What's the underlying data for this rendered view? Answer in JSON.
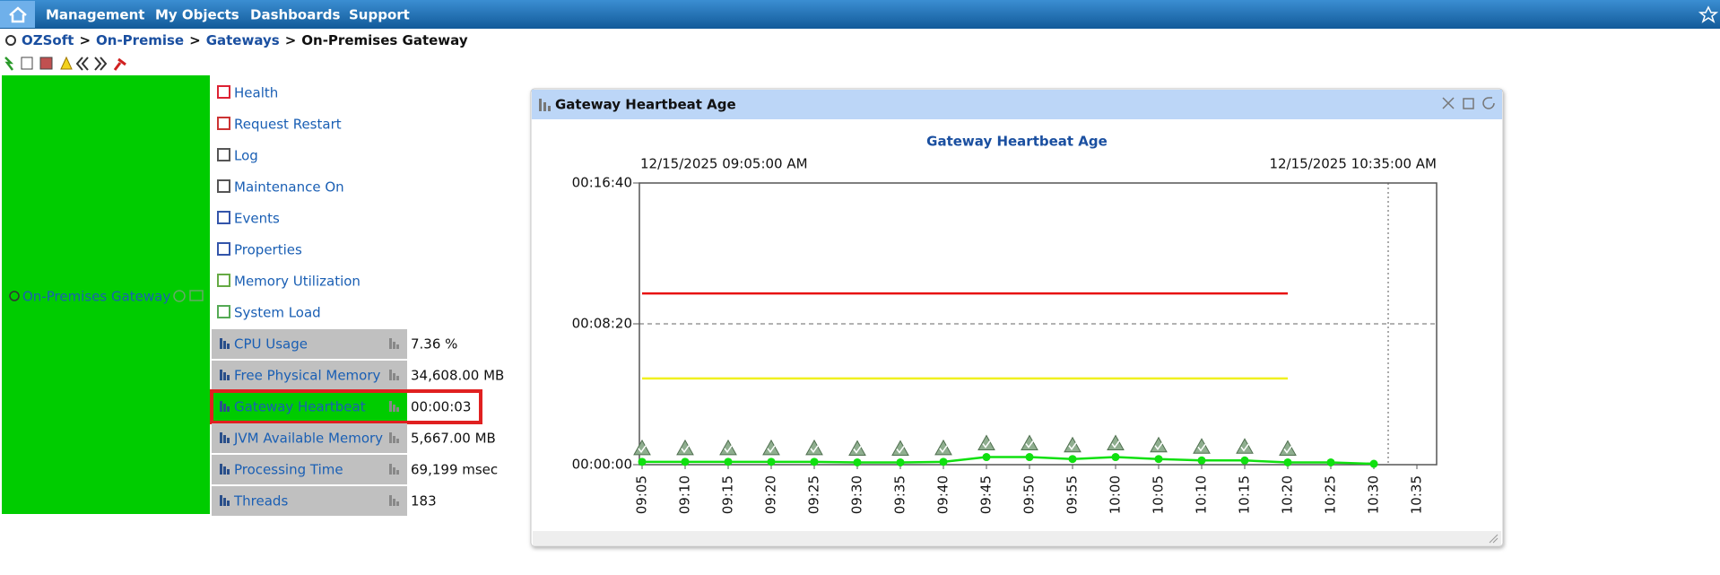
{
  "nav": {
    "items": [
      "Management",
      "My Objects",
      "Dashboards",
      "Support"
    ]
  },
  "breadcrumb": {
    "items": [
      "OZSoft",
      "On-Premise",
      "Gateways",
      "On-Premises Gateway"
    ],
    "separator": ">"
  },
  "object": {
    "name": "On-Premises Gateway"
  },
  "actions": [
    "Health",
    "Request Restart",
    "Log",
    "Maintenance On",
    "Events",
    "Properties",
    "Memory Utilization",
    "System Load"
  ],
  "metrics": [
    {
      "name": "CPU Usage",
      "value": "7.36 %"
    },
    {
      "name": "Free Physical Memory",
      "value": "34,608.00 MB"
    },
    {
      "name": "Gateway Heartbeat",
      "value": "00:00:03"
    },
    {
      "name": "JVM Available Memory",
      "value": "5,667.00 MB"
    },
    {
      "name": "Processing Time",
      "value": "69,199 msec"
    },
    {
      "name": "Threads",
      "value": "183"
    }
  ],
  "window": {
    "title": "Gateway Heartbeat Age"
  },
  "chart_data": {
    "type": "line",
    "title": "Gateway Heartbeat Age",
    "start_label": "12/15/2025 09:05:00 AM",
    "end_label": "12/15/2025 10:35:00 AM",
    "categories": [
      "09:05",
      "09:10",
      "09:15",
      "09:20",
      "09:25",
      "09:30",
      "09:35",
      "09:40",
      "09:45",
      "09:50",
      "09:55",
      "10:00",
      "10:05",
      "10:10",
      "10:15",
      "10:20",
      "10:25",
      "10:30",
      "10:35"
    ],
    "ylim": [
      0,
      1000
    ],
    "yticks": [
      {
        "value": 0,
        "label": "00:00:00"
      },
      {
        "value": 500,
        "label": "00:08:20"
      },
      {
        "value": 1000,
        "label": "00:16:40"
      }
    ],
    "grid": true,
    "series": [
      {
        "color": "#e81010",
        "values": [
          608,
          608,
          608,
          608,
          608,
          608,
          608,
          608,
          608,
          608,
          608,
          608,
          608,
          608,
          608,
          608,
          null,
          null,
          null
        ]
      },
      {
        "color": "#f0f020",
        "values": [
          306,
          306,
          306,
          306,
          306,
          306,
          306,
          306,
          306,
          306,
          306,
          306,
          306,
          306,
          306,
          306,
          null,
          null,
          null
        ]
      },
      {
        "color": "#10e010",
        "values": [
          10,
          10,
          10,
          10,
          10,
          8,
          8,
          10,
          27,
          27,
          20,
          27,
          20,
          15,
          15,
          8,
          8,
          3,
          null
        ]
      }
    ]
  }
}
